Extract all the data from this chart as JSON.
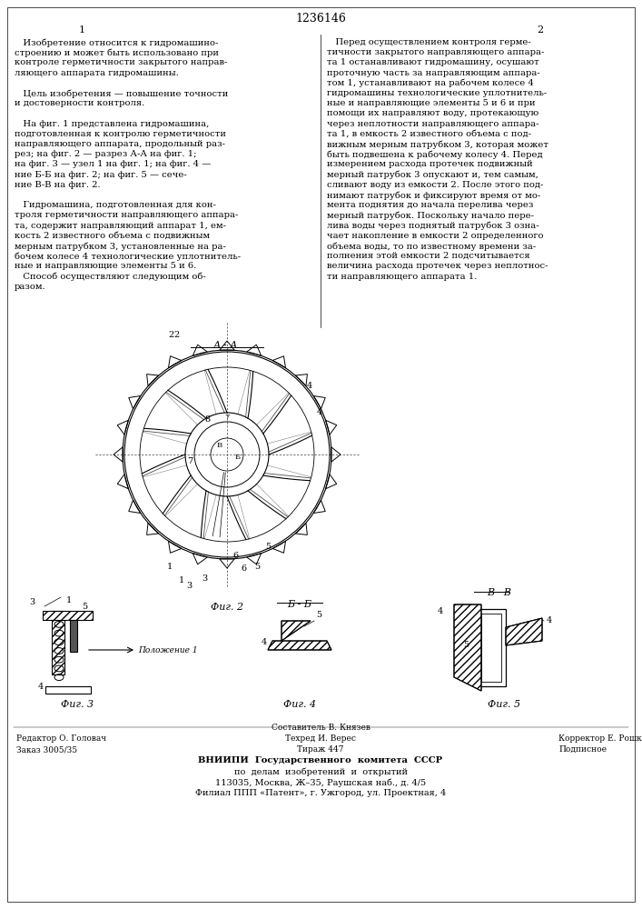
{
  "title": "1236146",
  "page_left": "1",
  "page_right": "2",
  "background_color": "#ffffff",
  "text_color": "#000000",
  "left_column_text": [
    "   Изобретение относится к гидромашино-",
    "строению и может быть использовано при",
    "контроле герметичности закрытого направ-",
    "ляющего аппарата гидромашины.",
    "",
    "   Цель изобретения — повышение точности",
    "и достоверности контроля.",
    "",
    "   На фиг. 1 представлена гидромашина,",
    "подготовленная к контролю герметичности",
    "направляющего аппарата, продольный раз-",
    "рез; на фиг. 2 — разрез А-А на фиг. 1;",
    "на фиг. 3 — узел 1 на фиг. 1; на фиг. 4 —",
    "ние Б-Б на фиг. 2; на фиг. 5 — сече-",
    "ние В-В на фиг. 2.",
    "",
    "   Гидромашина, подготовленная для кон-",
    "троля герметичности направляющего аппара-",
    "та, содержит направляющий аппарат 1, ем-",
    "кость 2 известного объема с подвижным",
    "мерным патрубком 3, установленные на ра-",
    "бочем колесе 4 технологические уплотнитель-",
    "ные и направляющие элементы 5 и 6.",
    "   Способ осуществляют следующим об-",
    "разом."
  ],
  "right_column_text": [
    "   Перед осуществлением контроля герме-",
    "тичности закрытого направляющего аппара-",
    "та 1 останавливают гидромашину, осушают",
    "проточную часть за направляющим аппара-",
    "том 1, устанавливают на рабочем колесе 4",
    "гидромашины технологические уплотнитель-",
    "ные и направляющие элементы 5 и 6 и при",
    "помощи их направляют воду, протекающую",
    "через неплотности направляющего аппара-",
    "та 1, в емкость 2 известного объема с под-",
    "вижным мерным патрубком 3, которая может",
    "быть подвешена к рабочему колесу 4. Перед",
    "измерением расхода протечек подвижный",
    "мерный патрубок 3 опускают и, тем самым,",
    "сливают воду из емкости 2. После этого под-",
    "нимают патрубок и фиксируют время от мо-",
    "мента поднятия до начала перелива через",
    "мерный патрубок. Поскольку начало пере-",
    "лива воды через поднятый патрубок 3 озна-",
    "чает накопление в емкости 2 определенного",
    "объема воды, то по известному времени за-",
    "полнения этой емкости 2 подсчитывается",
    "величина расхода протечек через неплотнос-",
    "ти направляющего аппарата 1."
  ],
  "footer_left1": "Редактор О. Головач",
  "footer_left2": "Заказ 3005/35",
  "footer_center1": "Составитель В. Князев",
  "footer_center2": "Техред И. Верес",
  "footer_center3": "Тираж 447",
  "footer_center4": "ВНИИПИ  Государственного  комитета  СССР",
  "footer_center5": "по  делам  изобретений  и  открытий",
  "footer_center6": "113035, Москва, Ж–35, Раушская наб., д. 4/5",
  "footer_center7": "Филиал ППП «Патент», г. Ужгород, ул. Проектная, 4",
  "footer_right1": "Корректор Е. Рошко",
  "footer_right2": "Подписное",
  "fig2_label": "Фиг. 2",
  "fig3_label": "Фиг. 3",
  "fig4_label": "Фиг. 4",
  "fig5_label": "Фиг. 5",
  "section_label_aa": "А - А",
  "section_label_bb": "Б - Б",
  "section_label_vv": "В - В"
}
